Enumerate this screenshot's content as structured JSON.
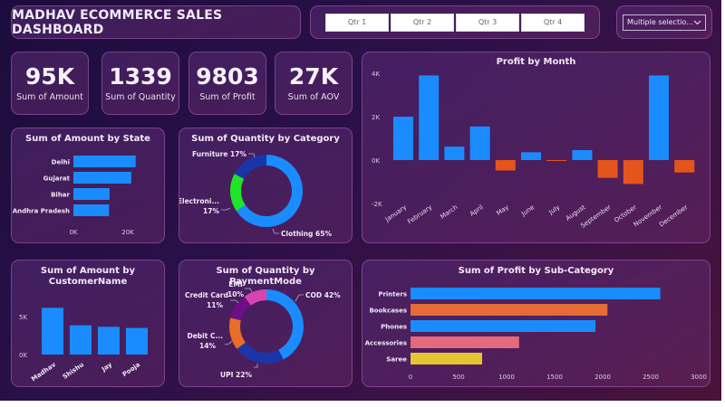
{
  "header": {
    "title": "MADHAV ECOMMERCE SALES DASHBOARD"
  },
  "quarter_slicer": {
    "buttons": [
      "Qtr 1",
      "Qtr 2",
      "Qtr 3",
      "Qtr 4"
    ]
  },
  "dropdown": {
    "selected": "Multiple selectio...",
    "icon": "chevron-down-icon"
  },
  "kpis": [
    {
      "value": "95K",
      "label": "Sum of Amount"
    },
    {
      "value": "1339",
      "label": "Sum of Quantity"
    },
    {
      "value": "9803",
      "label": "Sum of Profit"
    },
    {
      "value": "27K",
      "label": "Sum of AOV"
    }
  ],
  "colors": {
    "blue": "#1a8cff",
    "orange": "#e5541b",
    "green": "#1ee52a",
    "navy": "#1a35a8",
    "purple": "#6d0f86",
    "pink": "#d844b0",
    "debit_orange": "#e86d2a",
    "bookcases_orange": "#e56c36",
    "salmon": "#e4697a",
    "yellow": "#e6c531"
  },
  "chart_data": [
    {
      "id": "state",
      "type": "bar",
      "orientation": "horizontal",
      "title": "Sum of Amount by State",
      "categories": [
        "Delhi",
        "Gujarat",
        "Bihar",
        "Andhra Pradesh"
      ],
      "values": [
        22900,
        21300,
        13300,
        13100
      ],
      "xticks": [
        "0K",
        "20K"
      ],
      "xlim": [
        0,
        24000
      ]
    },
    {
      "id": "category",
      "type": "pie",
      "donut": true,
      "title": "Sum of Quantity by Category",
      "slices": [
        {
          "label": "Clothing",
          "pct": 65,
          "text": "Clothing 65%",
          "color": "#1a8cff"
        },
        {
          "label": "Electronics",
          "pct": 17,
          "text1": "Electroni...",
          "text2": "17%",
          "color": "#1ee52a"
        },
        {
          "label": "Furniture",
          "pct": 17,
          "text": "Furniture 17%",
          "color": "#1a35a8"
        }
      ]
    },
    {
      "id": "month",
      "type": "bar",
      "title": "Profit by Month",
      "categories": [
        "January",
        "February",
        "March",
        "April",
        "May",
        "June",
        "July",
        "August",
        "September",
        "October",
        "November",
        "December"
      ],
      "values": [
        2000,
        3900,
        620,
        1550,
        -480,
        360,
        -20,
        460,
        -820,
        -1100,
        3900,
        -570
      ],
      "yticks": [
        "4K",
        "2K",
        "0K",
        "-2K"
      ],
      "ylim": [
        -2000,
        4000
      ]
    },
    {
      "id": "customer",
      "type": "bar",
      "title": "Sum of Amount by CustomerName",
      "title_lines": [
        "Sum of Amount by",
        "CustomerName"
      ],
      "categories": [
        "Madhav",
        "Shishu",
        "Jay",
        "Pooja"
      ],
      "values": [
        6150,
        3850,
        3650,
        3500
      ],
      "yticks": [
        "5K",
        "0K"
      ],
      "ylim": [
        0,
        7000
      ]
    },
    {
      "id": "payment",
      "type": "pie",
      "donut": true,
      "title": "Sum of Quantity by PaymentMode",
      "slices": [
        {
          "label": "COD",
          "pct": 42,
          "text": "COD 42%",
          "color": "#1a8cff"
        },
        {
          "label": "UPI",
          "pct": 22,
          "text": "UPI 22%",
          "color": "#1a35a8"
        },
        {
          "label": "Debit Card",
          "pct": 14,
          "text1": "Debit C...",
          "text2": "14%",
          "color": "#e86d2a"
        },
        {
          "label": "Credit Card",
          "pct": 11,
          "text1": "Credit Card",
          "text2": "11%",
          "color": "#6d0f86"
        },
        {
          "label": "EMI",
          "pct": 10,
          "text1": "EMI",
          "text2": "10%",
          "color": "#d844b0"
        }
      ]
    },
    {
      "id": "subcategory",
      "type": "bar",
      "orientation": "horizontal",
      "title": "Sum of Profit by Sub-Category",
      "categories": [
        "Printers",
        "Bookcases",
        "Phones",
        "Accessories",
        "Saree"
      ],
      "values": [
        2600,
        2050,
        1925,
        1130,
        745
      ],
      "colors": [
        "#1a8cff",
        "#e56c36",
        "#1a8cff",
        "#e4697a",
        "#e6c531"
      ],
      "xticks": [
        "0",
        "500",
        "1000",
        "1500",
        "2000",
        "2500",
        "3000"
      ],
      "xlim": [
        0,
        3000
      ]
    }
  ]
}
